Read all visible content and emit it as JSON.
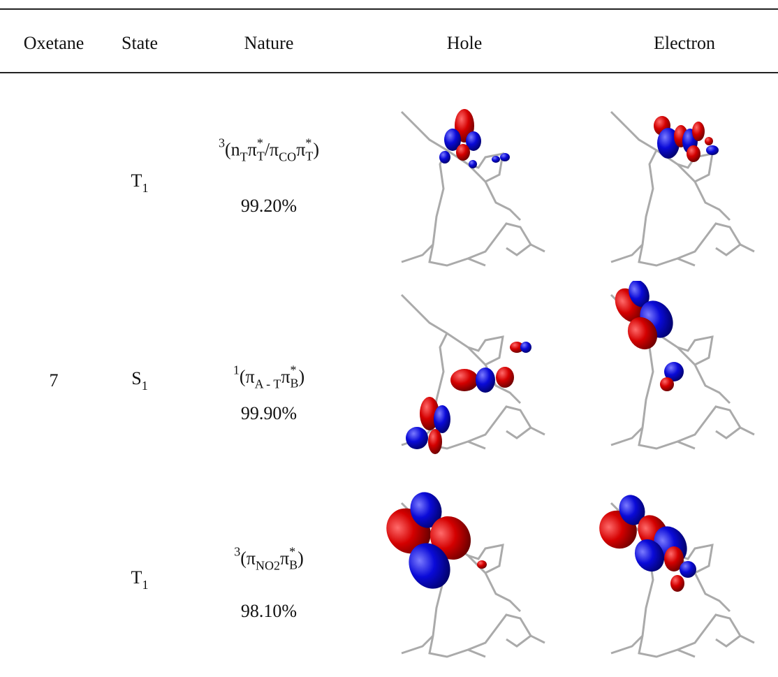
{
  "table": {
    "header": [
      "Oxetane",
      "State",
      "Nature",
      "Hole",
      "Electron"
    ],
    "oxetane": "7",
    "rows": [
      {
        "state": {
          "main": "T",
          "sub": "1"
        },
        "nature": [
          {
            "sup": "3"
          },
          "(n",
          {
            "sub": "T"
          },
          "π",
          {
            "sup": "*",
            "sub": "T"
          },
          "/π",
          {
            "sub": "CO"
          },
          "π",
          {
            "sup": "*",
            "sub": "T"
          },
          ")"
        ],
        "percent": "99.20%"
      },
      {
        "state": {
          "main": "S",
          "sub": "1"
        },
        "nature": [
          {
            "sup": "1"
          },
          "(π",
          {
            "sub": "A - T"
          },
          "π",
          {
            "sup": "*",
            "sub": "B"
          },
          ")"
        ],
        "percent": "99.90%"
      },
      {
        "state": {
          "main": "T",
          "sub": "1"
        },
        "nature": [
          {
            "sup": "3"
          },
          "(π",
          {
            "sub": "NO2"
          },
          "π",
          {
            "sup": "*",
            "sub": "B"
          },
          ")"
        ],
        "percent": "98.10%"
      }
    ]
  }
}
